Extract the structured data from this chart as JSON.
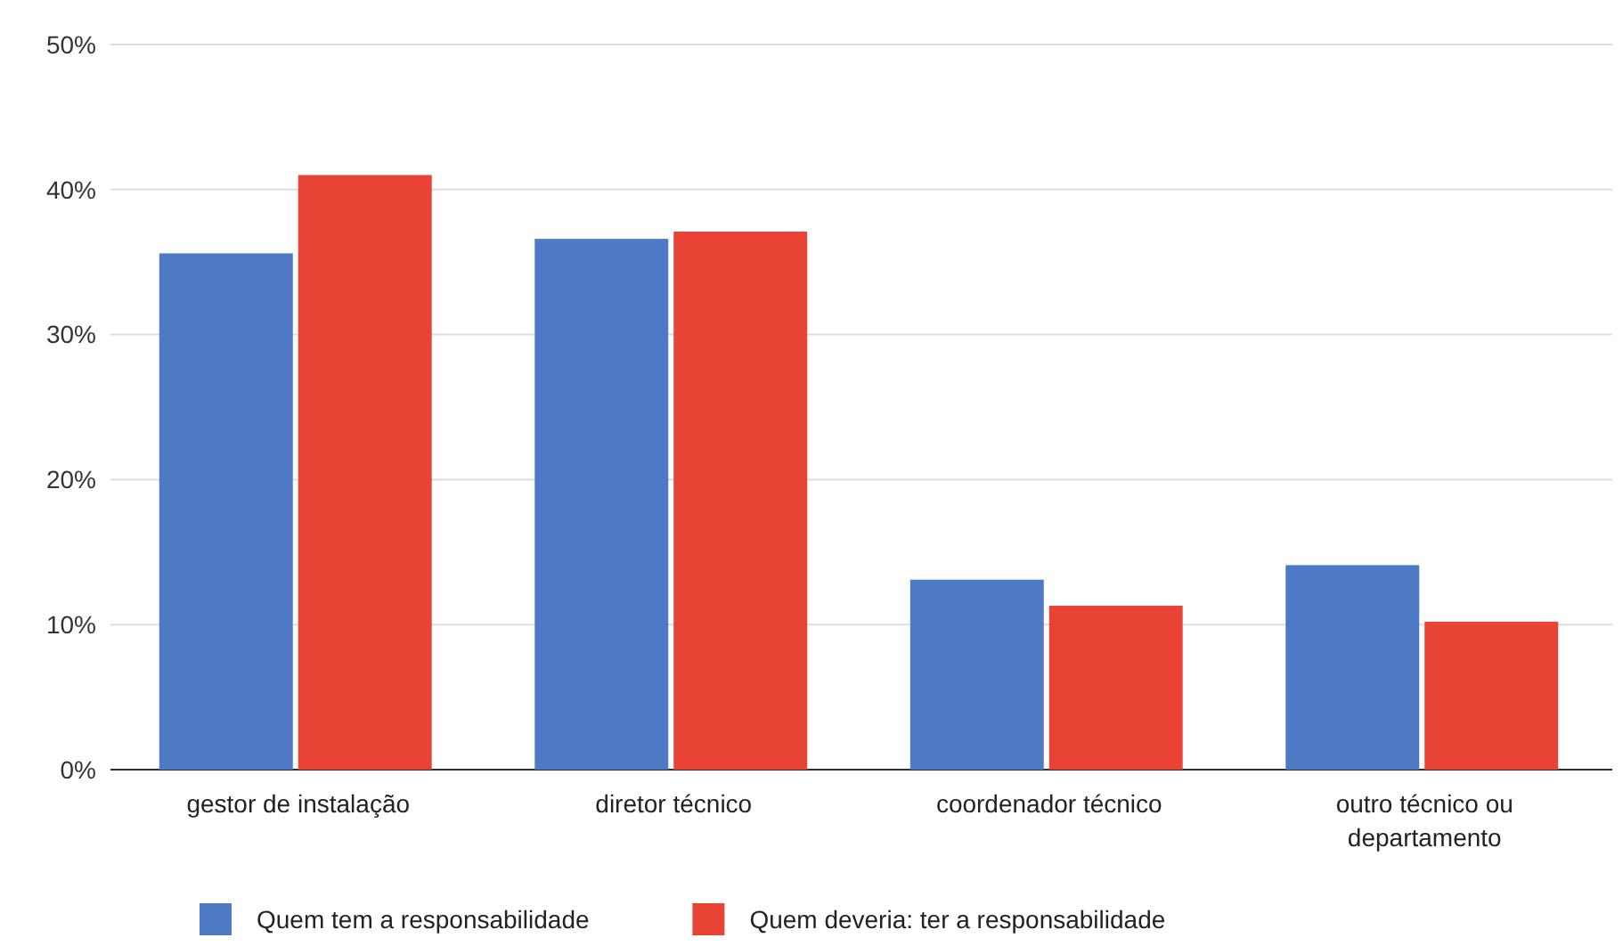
{
  "chart_data": {
    "type": "bar",
    "categories": [
      "gestor de instalação",
      "diretor técnico",
      "coordenador técnico",
      "outro técnico ou departamento"
    ],
    "series": [
      {
        "name": "Quem tem a responsabilidade",
        "color": "#4e79c4",
        "values": [
          35.6,
          36.6,
          13.1,
          14.1
        ]
      },
      {
        "name": "Quem deveria: ter a responsabilidade",
        "color": "#e94335",
        "values": [
          41.0,
          37.1,
          11.3,
          10.2
        ]
      }
    ],
    "ylim": [
      0,
      50
    ],
    "yticks": [
      {
        "value": 0,
        "label": "0%"
      },
      {
        "value": 10,
        "label": "10%"
      },
      {
        "value": 20,
        "label": "20%"
      },
      {
        "value": 30,
        "label": "30%"
      },
      {
        "value": 40,
        "label": "40%"
      },
      {
        "value": 50,
        "label": "50%"
      }
    ],
    "grid": "y",
    "legend": "bottom"
  }
}
